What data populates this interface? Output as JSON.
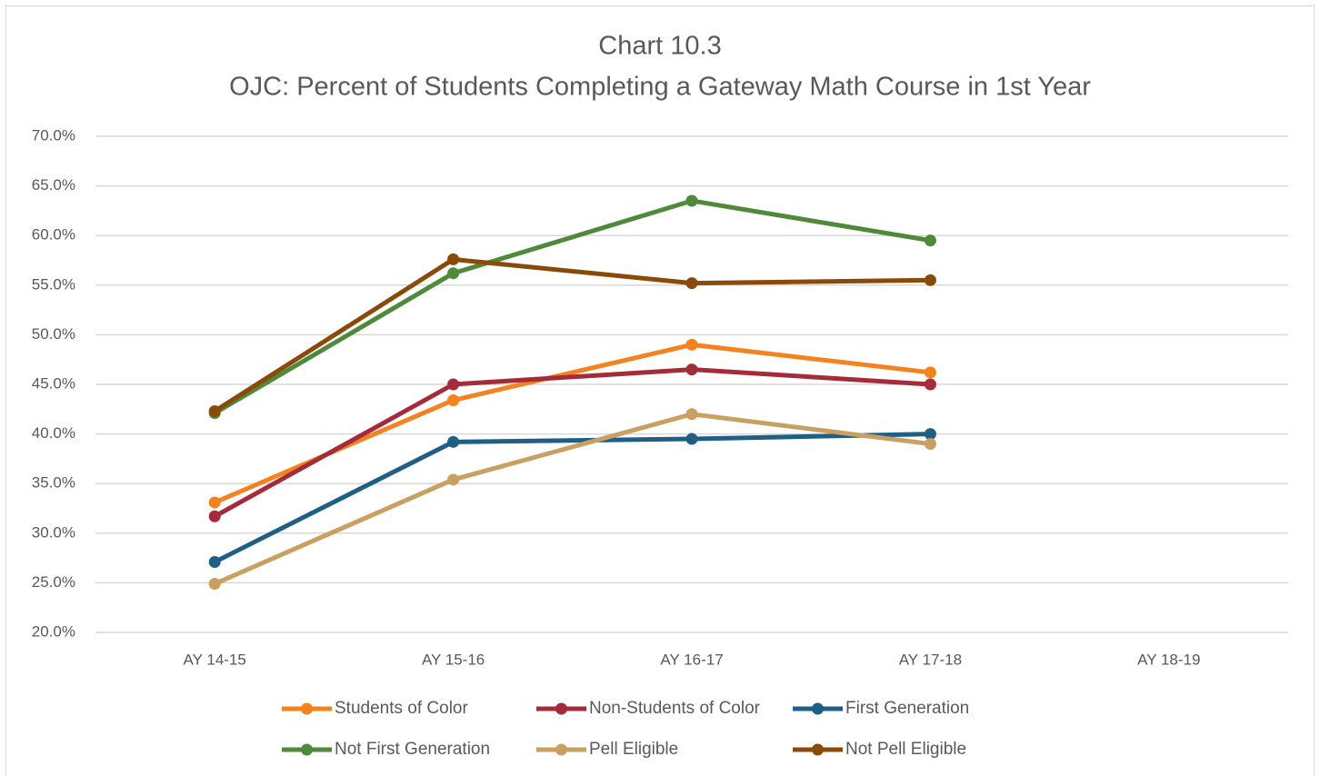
{
  "chart_data": {
    "type": "line",
    "title": "Chart 10.3",
    "subtitle": "OJC: Percent of Students Completing a Gateway Math Course in 1st Year",
    "categories": [
      "AY 14-15",
      "AY 15-16",
      "AY 16-17",
      "AY 17-18",
      "AY 18-19"
    ],
    "series": [
      {
        "name": "Students of Color",
        "color": "#f4821f",
        "values": [
          33.1,
          43.4,
          49.0,
          46.2,
          null
        ]
      },
      {
        "name": "Non-Students of Color",
        "color": "#a52a3a",
        "values": [
          31.7,
          45.0,
          46.5,
          45.0,
          null
        ]
      },
      {
        "name": "First Generation",
        "color": "#1f5f86",
        "values": [
          27.1,
          39.2,
          39.5,
          40.0,
          null
        ]
      },
      {
        "name": "Not First Generation",
        "color": "#4f8a3c",
        "values": [
          42.1,
          56.2,
          63.5,
          59.5,
          null
        ]
      },
      {
        "name": "Pell Eligible",
        "color": "#c9a062",
        "values": [
          24.9,
          35.4,
          42.0,
          39.0,
          null
        ]
      },
      {
        "name": "Not Pell Eligible",
        "color": "#8a4a0a",
        "values": [
          42.3,
          57.6,
          55.2,
          55.5,
          null
        ]
      }
    ],
    "ylim": [
      20,
      70
    ],
    "yticks": [
      {
        "value": 20,
        "label": "20.0%"
      },
      {
        "value": 25,
        "label": "25.0%"
      },
      {
        "value": 30,
        "label": "30.0%"
      },
      {
        "value": 35,
        "label": "35.0%"
      },
      {
        "value": 40,
        "label": "40.0%"
      },
      {
        "value": 45,
        "label": "45.0%"
      },
      {
        "value": 50,
        "label": "50.0%"
      },
      {
        "value": 55,
        "label": "55.0%"
      },
      {
        "value": 60,
        "label": "60.0%"
      },
      {
        "value": 65,
        "label": "65.0%"
      },
      {
        "value": 70,
        "label": "70.0%"
      }
    ],
    "grid": true,
    "legend": "bottom"
  }
}
